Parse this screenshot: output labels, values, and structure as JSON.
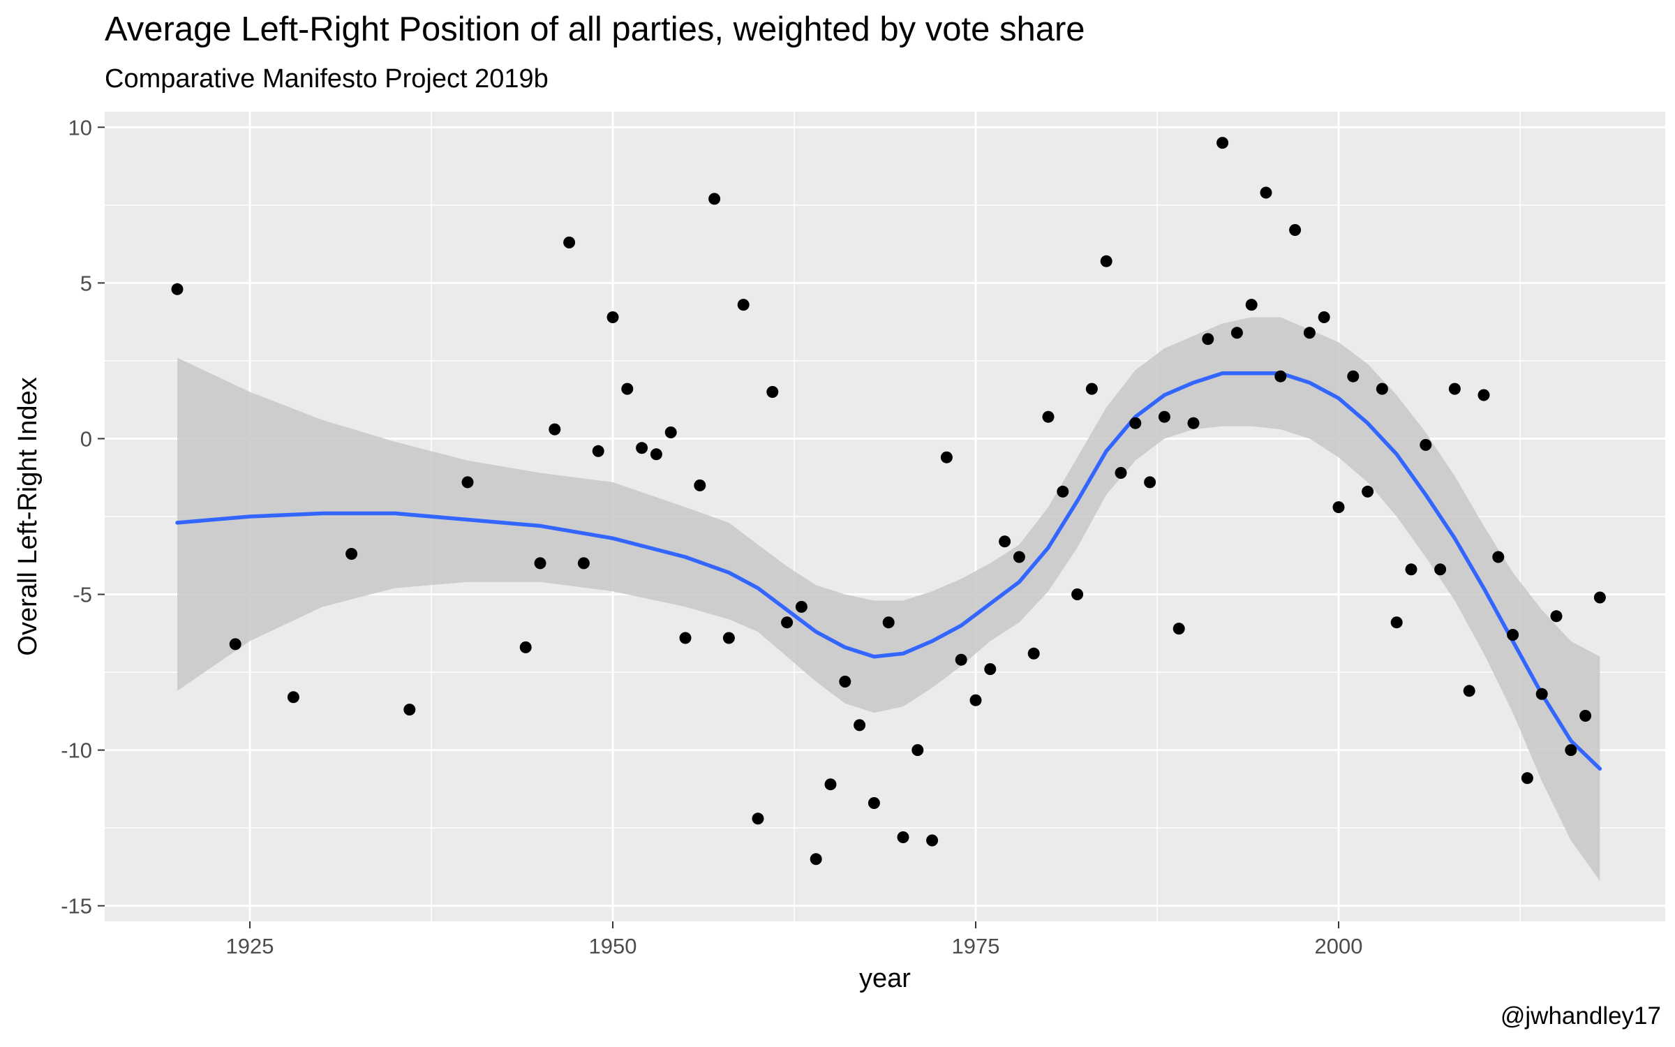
{
  "chart_data": {
    "type": "scatter",
    "title": "Average Left-Right Position of all parties, weighted by vote share",
    "subtitle": "Comparative Manifesto Project 2019b",
    "caption": "@jwhandley17",
    "xlabel": "year",
    "ylabel": "Overall Left-Right Index",
    "xlim": [
      1915,
      2022.5
    ],
    "ylim": [
      -15.5,
      10.5
    ],
    "x_ticks": [
      1925,
      1950,
      1975,
      2000
    ],
    "y_ticks": [
      10,
      5,
      0,
      -5,
      -10,
      -15
    ],
    "y_tick_labels": [
      "10",
      "5",
      "0",
      "-5",
      "-10",
      "-15"
    ],
    "grid": true,
    "colors": {
      "panel": "#ebebeb",
      "grid": "#ffffff",
      "points": "#000000",
      "smooth_line": "#3366ff",
      "ribbon": "#c8c8c8"
    },
    "points": [
      {
        "x": 1920,
        "y": 4.8
      },
      {
        "x": 1924,
        "y": -6.6
      },
      {
        "x": 1928,
        "y": -8.3
      },
      {
        "x": 1932,
        "y": -3.7
      },
      {
        "x": 1936,
        "y": -8.7
      },
      {
        "x": 1940,
        "y": -1.4
      },
      {
        "x": 1944,
        "y": -6.7
      },
      {
        "x": 1945,
        "y": -4.0
      },
      {
        "x": 1946,
        "y": 0.3
      },
      {
        "x": 1947,
        "y": 6.3
      },
      {
        "x": 1948,
        "y": -4.0
      },
      {
        "x": 1949,
        "y": -0.4
      },
      {
        "x": 1950,
        "y": 3.9
      },
      {
        "x": 1951,
        "y": 1.6
      },
      {
        "x": 1952,
        "y": -0.3
      },
      {
        "x": 1953,
        "y": -0.5
      },
      {
        "x": 1954,
        "y": 0.2
      },
      {
        "x": 1955,
        "y": -6.4
      },
      {
        "x": 1956,
        "y": -1.5
      },
      {
        "x": 1957,
        "y": 7.7
      },
      {
        "x": 1958,
        "y": -6.4
      },
      {
        "x": 1959,
        "y": 4.3
      },
      {
        "x": 1960,
        "y": -12.2
      },
      {
        "x": 1961,
        "y": 1.5
      },
      {
        "x": 1962,
        "y": -5.9
      },
      {
        "x": 1963,
        "y": -5.4
      },
      {
        "x": 1964,
        "y": -13.5
      },
      {
        "x": 1965,
        "y": -11.1
      },
      {
        "x": 1966,
        "y": -7.8
      },
      {
        "x": 1967,
        "y": -9.2
      },
      {
        "x": 1968,
        "y": -11.7
      },
      {
        "x": 1969,
        "y": -5.9
      },
      {
        "x": 1970,
        "y": -12.8
      },
      {
        "x": 1971,
        "y": -10.0
      },
      {
        "x": 1972,
        "y": -12.9
      },
      {
        "x": 1973,
        "y": -0.6
      },
      {
        "x": 1974,
        "y": -7.1
      },
      {
        "x": 1975,
        "y": -8.4
      },
      {
        "x": 1976,
        "y": -7.4
      },
      {
        "x": 1977,
        "y": -3.3
      },
      {
        "x": 1978,
        "y": -3.8
      },
      {
        "x": 1979,
        "y": -6.9
      },
      {
        "x": 1980,
        "y": 0.7
      },
      {
        "x": 1981,
        "y": -1.7
      },
      {
        "x": 1982,
        "y": -5.0
      },
      {
        "x": 1983,
        "y": 1.6
      },
      {
        "x": 1984,
        "y": 5.7
      },
      {
        "x": 1985,
        "y": -1.1
      },
      {
        "x": 1986,
        "y": 0.5
      },
      {
        "x": 1987,
        "y": -1.4
      },
      {
        "x": 1988,
        "y": 0.7
      },
      {
        "x": 1989,
        "y": -6.1
      },
      {
        "x": 1990,
        "y": 0.5
      },
      {
        "x": 1991,
        "y": 3.2
      },
      {
        "x": 1992,
        "y": 9.5
      },
      {
        "x": 1993,
        "y": 3.4
      },
      {
        "x": 1994,
        "y": 4.3
      },
      {
        "x": 1995,
        "y": 7.9
      },
      {
        "x": 1996,
        "y": 2.0
      },
      {
        "x": 1997,
        "y": 6.7
      },
      {
        "x": 1998,
        "y": 3.4
      },
      {
        "x": 1999,
        "y": 3.9
      },
      {
        "x": 2000,
        "y": -2.2
      },
      {
        "x": 2001,
        "y": 2.0
      },
      {
        "x": 2002,
        "y": -1.7
      },
      {
        "x": 2003,
        "y": 1.6
      },
      {
        "x": 2004,
        "y": -5.9
      },
      {
        "x": 2005,
        "y": -4.2
      },
      {
        "x": 2006,
        "y": -0.2
      },
      {
        "x": 2007,
        "y": -4.2
      },
      {
        "x": 2008,
        "y": 1.6
      },
      {
        "x": 2009,
        "y": -8.1
      },
      {
        "x": 2010,
        "y": 1.4
      },
      {
        "x": 2011,
        "y": -3.8
      },
      {
        "x": 2012,
        "y": -6.3
      },
      {
        "x": 2013,
        "y": -10.9
      },
      {
        "x": 2014,
        "y": -8.2
      },
      {
        "x": 2015,
        "y": -5.7
      },
      {
        "x": 2016,
        "y": -10.0
      },
      {
        "x": 2017,
        "y": -8.9
      },
      {
        "x": 2018,
        "y": -5.1
      }
    ],
    "smooth": [
      {
        "x": 1920,
        "y": -2.7,
        "lo": -8.1,
        "hi": 2.6
      },
      {
        "x": 1925,
        "y": -2.5,
        "lo": -6.5,
        "hi": 1.5
      },
      {
        "x": 1930,
        "y": -2.4,
        "lo": -5.4,
        "hi": 0.6
      },
      {
        "x": 1935,
        "y": -2.4,
        "lo": -4.8,
        "hi": -0.1
      },
      {
        "x": 1940,
        "y": -2.6,
        "lo": -4.6,
        "hi": -0.7
      },
      {
        "x": 1945,
        "y": -2.8,
        "lo": -4.6,
        "hi": -1.1
      },
      {
        "x": 1950,
        "y": -3.2,
        "lo": -4.9,
        "hi": -1.4
      },
      {
        "x": 1955,
        "y": -3.8,
        "lo": -5.4,
        "hi": -2.2
      },
      {
        "x": 1958,
        "y": -4.3,
        "lo": -5.8,
        "hi": -2.7
      },
      {
        "x": 1960,
        "y": -4.8,
        "lo": -6.2,
        "hi": -3.4
      },
      {
        "x": 1962,
        "y": -5.5,
        "lo": -7.0,
        "hi": -4.1
      },
      {
        "x": 1964,
        "y": -6.2,
        "lo": -7.8,
        "hi": -4.7
      },
      {
        "x": 1966,
        "y": -6.7,
        "lo": -8.5,
        "hi": -5.0
      },
      {
        "x": 1968,
        "y": -7.0,
        "lo": -8.8,
        "hi": -5.2
      },
      {
        "x": 1970,
        "y": -6.9,
        "lo": -8.6,
        "hi": -5.2
      },
      {
        "x": 1972,
        "y": -6.5,
        "lo": -8.0,
        "hi": -4.9
      },
      {
        "x": 1974,
        "y": -6.0,
        "lo": -7.3,
        "hi": -4.5
      },
      {
        "x": 1976,
        "y": -5.3,
        "lo": -6.5,
        "hi": -4.0
      },
      {
        "x": 1978,
        "y": -4.6,
        "lo": -5.9,
        "hi": -3.4
      },
      {
        "x": 1980,
        "y": -3.5,
        "lo": -4.9,
        "hi": -2.2
      },
      {
        "x": 1982,
        "y": -2.0,
        "lo": -3.5,
        "hi": -0.6
      },
      {
        "x": 1984,
        "y": -0.4,
        "lo": -1.8,
        "hi": 1.0
      },
      {
        "x": 1986,
        "y": 0.7,
        "lo": -0.7,
        "hi": 2.2
      },
      {
        "x": 1988,
        "y": 1.4,
        "lo": 0.0,
        "hi": 2.9
      },
      {
        "x": 1990,
        "y": 1.8,
        "lo": 0.3,
        "hi": 3.3
      },
      {
        "x": 1992,
        "y": 2.1,
        "lo": 0.4,
        "hi": 3.7
      },
      {
        "x": 1994,
        "y": 2.1,
        "lo": 0.4,
        "hi": 3.9
      },
      {
        "x": 1996,
        "y": 2.1,
        "lo": 0.3,
        "hi": 3.9
      },
      {
        "x": 1998,
        "y": 1.8,
        "lo": 0.0,
        "hi": 3.5
      },
      {
        "x": 2000,
        "y": 1.3,
        "lo": -0.6,
        "hi": 3.1
      },
      {
        "x": 2002,
        "y": 0.5,
        "lo": -1.4,
        "hi": 2.4
      },
      {
        "x": 2004,
        "y": -0.5,
        "lo": -2.5,
        "hi": 1.4
      },
      {
        "x": 2006,
        "y": -1.8,
        "lo": -3.8,
        "hi": 0.2
      },
      {
        "x": 2008,
        "y": -3.2,
        "lo": -5.2,
        "hi": -1.2
      },
      {
        "x": 2010,
        "y": -4.8,
        "lo": -6.9,
        "hi": -2.8
      },
      {
        "x": 2012,
        "y": -6.5,
        "lo": -8.8,
        "hi": -4.3
      },
      {
        "x": 2014,
        "y": -8.2,
        "lo": -11.0,
        "hi": -5.5
      },
      {
        "x": 2016,
        "y": -9.7,
        "lo": -12.9,
        "hi": -6.5
      },
      {
        "x": 2018,
        "y": -10.6,
        "lo": -14.2,
        "hi": -7.0
      }
    ]
  }
}
